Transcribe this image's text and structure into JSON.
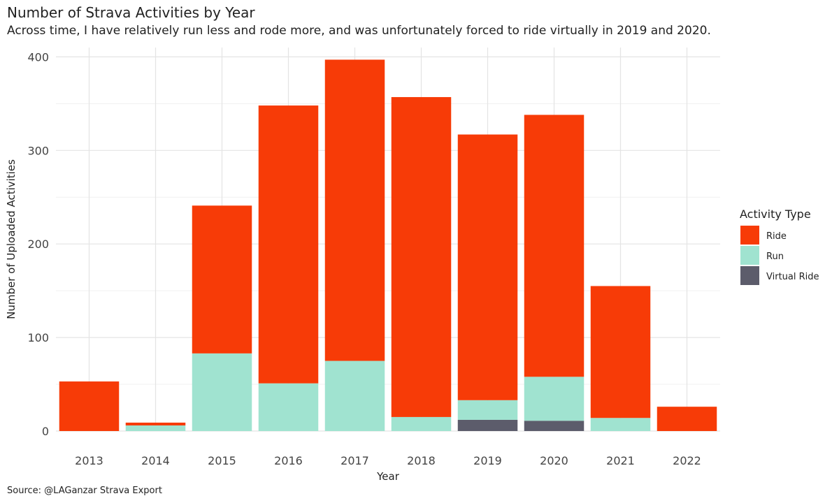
{
  "chart_data": {
    "type": "bar",
    "stacked": true,
    "title": "Number of Strava Activities by Year",
    "subtitle": "Across time, I have relatively run less and rode more, and was unfortunately forced to ride virtually in 2019 and 2020.",
    "xlabel": "Year",
    "ylabel": "Number of Uploaded Activities",
    "ylim": [
      0,
      410
    ],
    "yticks": [
      0,
      100,
      200,
      300,
      400
    ],
    "categories": [
      "2013",
      "2014",
      "2015",
      "2016",
      "2017",
      "2018",
      "2019",
      "2020",
      "2021",
      "2022"
    ],
    "series": [
      {
        "name": "Virtual Ride",
        "color": "#5c5c6b",
        "values": [
          0,
          0,
          0,
          0,
          0,
          0,
          12,
          11,
          0,
          0
        ]
      },
      {
        "name": "Run",
        "color": "#a0e3d0",
        "values": [
          0,
          6,
          83,
          51,
          75,
          15,
          21,
          47,
          14,
          0
        ]
      },
      {
        "name": "Ride",
        "color": "#f73b07",
        "values": [
          53,
          3,
          158,
          297,
          322,
          342,
          284,
          280,
          141,
          26
        ]
      }
    ],
    "legend": {
      "title": "Activity Type",
      "position": "right",
      "order": [
        "Ride",
        "Run",
        "Virtual Ride"
      ]
    },
    "source": "Source: @LAGanzar Strava Export",
    "grid": true
  }
}
